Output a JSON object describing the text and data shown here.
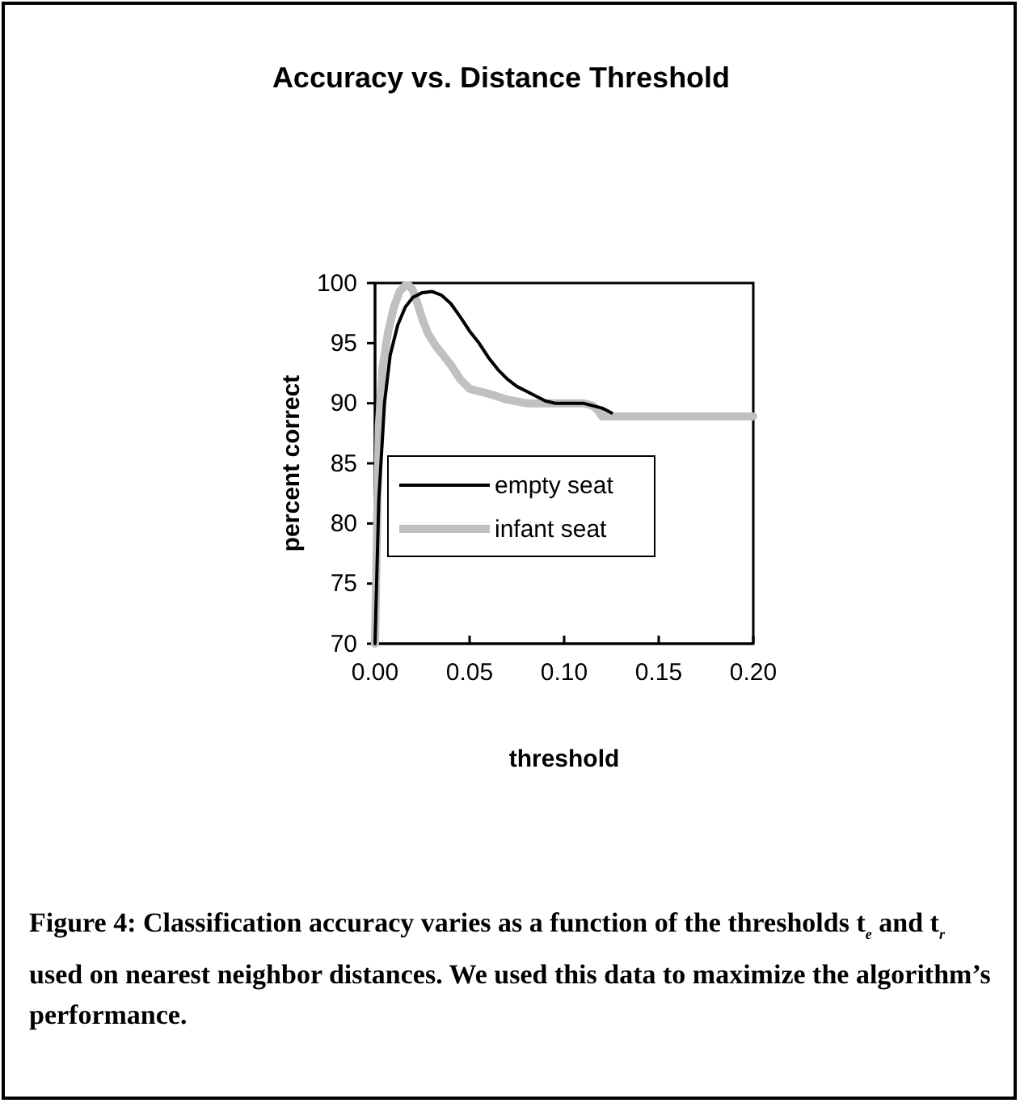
{
  "chart_data": {
    "type": "line",
    "title": "Accuracy vs. Distance Threshold",
    "xlabel": "threshold",
    "ylabel": "percent correct",
    "xlim": [
      0,
      0.2
    ],
    "xticks": [
      {
        "value": 0,
        "label": "0.00"
      },
      {
        "value": 0.05,
        "label": "0.05"
      },
      {
        "value": 0.1,
        "label": "0.10"
      },
      {
        "value": 0.15,
        "label": "0.15"
      },
      {
        "value": 0.2,
        "label": "0.20"
      }
    ],
    "ylim": [
      70,
      100
    ],
    "yticks": [
      70,
      75,
      80,
      85,
      90,
      95,
      100
    ],
    "grid": false,
    "legend": "bottom left",
    "marker": "none",
    "line_style": "solid",
    "series": [
      {
        "name": "empty seat",
        "color": "#000000",
        "x": [
          0,
          0.002,
          0.005,
          0.008,
          0.012,
          0.016,
          0.02,
          0.025,
          0.03,
          0.035,
          0.04,
          0.045,
          0.05,
          0.055,
          0.06,
          0.065,
          0.07,
          0.075,
          0.08,
          0.085,
          0.09,
          0.095,
          0.1,
          0.11,
          0.115,
          0.12,
          0.125
        ],
        "values": [
          70,
          82,
          90,
          94,
          96.5,
          98,
          98.8,
          99.2,
          99.3,
          99,
          98.3,
          97.2,
          96,
          95,
          93.8,
          92.8,
          92,
          91.4,
          91,
          90.6,
          90.2,
          90,
          90,
          90,
          89.8,
          89.6,
          89.2
        ]
      },
      {
        "name": "infant seat",
        "color": "#c0c0c0",
        "x": [
          0,
          0.002,
          0.004,
          0.007,
          0.01,
          0.013,
          0.016,
          0.018,
          0.02,
          0.022,
          0.025,
          0.028,
          0.032,
          0.036,
          0.04,
          0.045,
          0.05,
          0.055,
          0.06,
          0.07,
          0.08,
          0.1,
          0.11,
          0.115,
          0.118,
          0.12,
          0.15,
          0.2
        ],
        "values": [
          70,
          88,
          93,
          96,
          98,
          99.3,
          99.8,
          99.8,
          99.4,
          98.5,
          97,
          95.8,
          94.8,
          94,
          93.2,
          92,
          91.2,
          91,
          90.8,
          90.3,
          90,
          90,
          90,
          89.8,
          89.4,
          88.9,
          88.9,
          88.9
        ]
      }
    ],
    "annotations": [
      "Figure 4: Classification accuracy varies as a function of the thresholds t$_{e}$ and t$_{r}$ used on nearest neighbor distances. We used this data to maximize the algorithm’s performance."
    ]
  }
}
